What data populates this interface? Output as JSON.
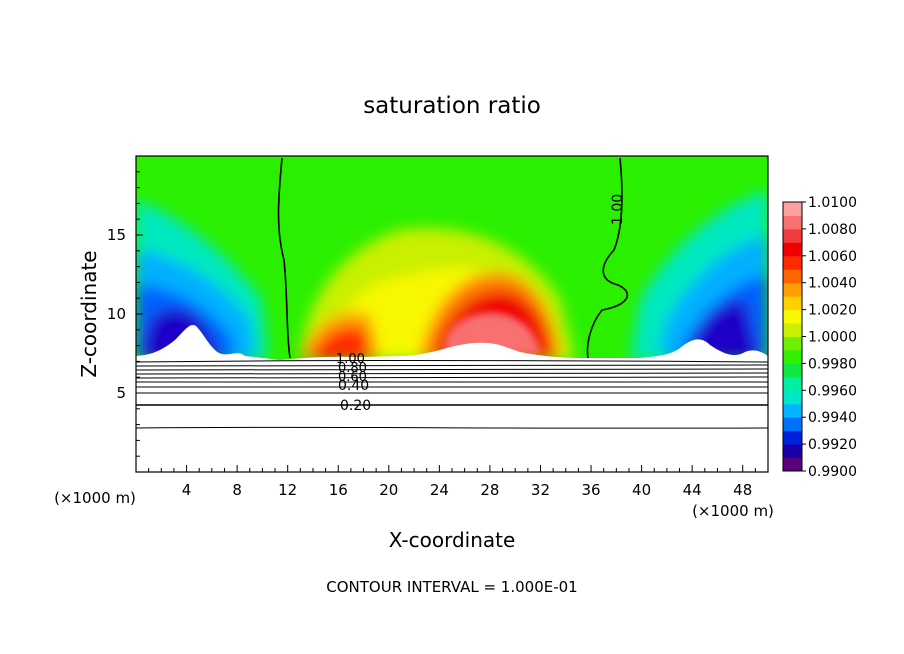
{
  "chart_data": {
    "type": "heatmap",
    "title": "saturation ratio",
    "xlabel": "X-coordinate",
    "ylabel": "Z-coordinate",
    "x_unit": "(×1000 m)",
    "x_unit_right": "(×1000 m)",
    "xlim": [
      0,
      50
    ],
    "ylim": [
      0,
      20
    ],
    "x_ticks": [
      "4",
      "8",
      "12",
      "16",
      "20",
      "24",
      "28",
      "32",
      "36",
      "40",
      "44",
      "48"
    ],
    "y_ticks": [
      "5",
      "10",
      "15"
    ],
    "footer": "CONTOUR INTERVAL = 1.000E-01",
    "colorbar": {
      "labels": [
        "0.9900",
        "0.9920",
        "0.9940",
        "0.9960",
        "0.9980",
        "1.0000",
        "1.0020",
        "1.0040",
        "1.0060",
        "1.0080",
        "1.0100"
      ],
      "colors": [
        "#5a007a",
        "#1a00a8",
        "#0020e0",
        "#0070ff",
        "#00b4ff",
        "#00e6c8",
        "#00f0a0",
        "#10e840",
        "#30f000",
        "#70f000",
        "#c8f000",
        "#f8f800",
        "#ffd000",
        "#ff9e00",
        "#ff6400",
        "#ff2a00",
        "#f00000",
        "#f03c3c",
        "#f87070",
        "#fca0a0"
      ]
    },
    "contour_labels": [
      "1.00",
      "1.00",
      "0.80",
      "0.60",
      "0.40",
      "0.20"
    ],
    "ground_contours": [
      1.0,
      0.9,
      0.8,
      0.7,
      0.6,
      0.5,
      0.4,
      0.3,
      0.2,
      0.1
    ],
    "regions": {
      "background": "#33ff00",
      "moist_core": "#ff1a00",
      "dry_edges": "#0000cc"
    }
  }
}
